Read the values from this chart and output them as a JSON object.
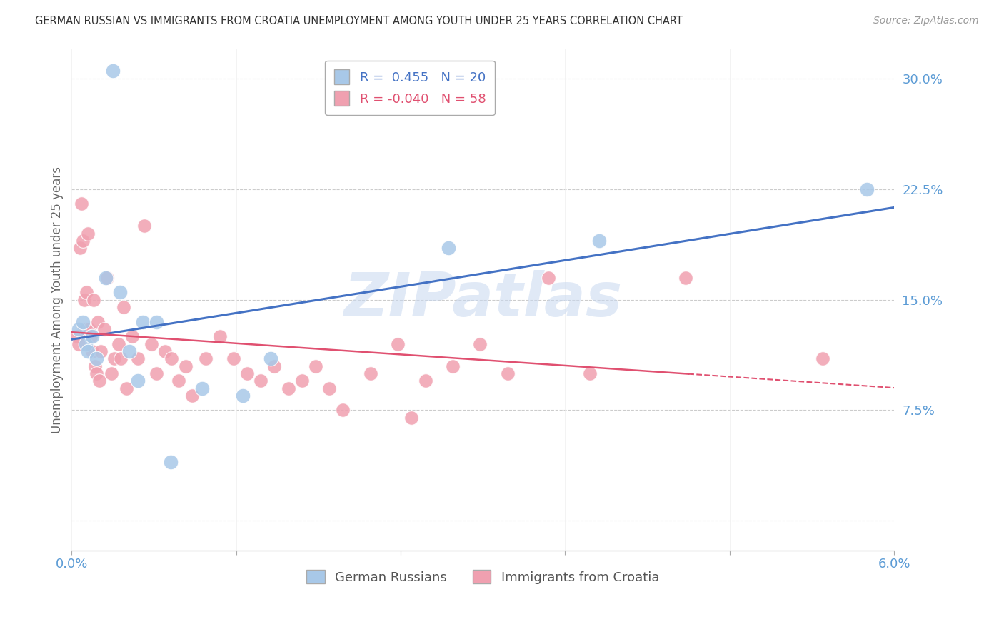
{
  "title": "GERMAN RUSSIAN VS IMMIGRANTS FROM CROATIA UNEMPLOYMENT AMONG YOUTH UNDER 25 YEARS CORRELATION CHART",
  "source": "Source: ZipAtlas.com",
  "ylabel": "Unemployment Among Youth under 25 years",
  "xlim": [
    0.0,
    6.0
  ],
  "ylim": [
    -2.0,
    32.0
  ],
  "yticks": [
    0.0,
    7.5,
    15.0,
    22.5,
    30.0
  ],
  "ytick_labels": [
    "",
    "7.5%",
    "15.0%",
    "22.5%",
    "30.0%"
  ],
  "xtick_positions": [
    0.0,
    1.2,
    2.4,
    3.6,
    4.8,
    6.0
  ],
  "watermark": "ZIPatlas",
  "blue_label": "German Russians",
  "pink_label": "Immigrants from Croatia",
  "blue_R": 0.455,
  "blue_N": 20,
  "pink_R": -0.04,
  "pink_N": 58,
  "blue_color": "#a8c8e8",
  "pink_color": "#f0a0b0",
  "blue_line_color": "#4472c4",
  "pink_line_color": "#e05070",
  "blue_dots": [
    [
      0.3,
      30.5
    ],
    [
      0.05,
      13.0
    ],
    [
      0.08,
      13.5
    ],
    [
      0.1,
      12.0
    ],
    [
      0.12,
      11.5
    ],
    [
      0.15,
      12.5
    ],
    [
      0.18,
      11.0
    ],
    [
      0.25,
      16.5
    ],
    [
      0.35,
      15.5
    ],
    [
      0.42,
      11.5
    ],
    [
      0.48,
      9.5
    ],
    [
      0.52,
      13.5
    ],
    [
      0.62,
      13.5
    ],
    [
      0.72,
      4.0
    ],
    [
      0.95,
      9.0
    ],
    [
      1.25,
      8.5
    ],
    [
      1.45,
      11.0
    ],
    [
      2.75,
      18.5
    ],
    [
      3.85,
      19.0
    ],
    [
      5.8,
      22.5
    ]
  ],
  "pink_dots": [
    [
      0.04,
      12.5
    ],
    [
      0.05,
      12.0
    ],
    [
      0.06,
      18.5
    ],
    [
      0.07,
      21.5
    ],
    [
      0.08,
      19.0
    ],
    [
      0.09,
      15.0
    ],
    [
      0.1,
      13.0
    ],
    [
      0.11,
      15.5
    ],
    [
      0.12,
      19.5
    ],
    [
      0.13,
      13.0
    ],
    [
      0.14,
      12.5
    ],
    [
      0.15,
      11.5
    ],
    [
      0.16,
      15.0
    ],
    [
      0.17,
      10.5
    ],
    [
      0.18,
      10.0
    ],
    [
      0.19,
      13.5
    ],
    [
      0.2,
      9.5
    ],
    [
      0.21,
      11.5
    ],
    [
      0.24,
      13.0
    ],
    [
      0.26,
      16.5
    ],
    [
      0.29,
      10.0
    ],
    [
      0.31,
      11.0
    ],
    [
      0.34,
      12.0
    ],
    [
      0.36,
      11.0
    ],
    [
      0.38,
      14.5
    ],
    [
      0.4,
      9.0
    ],
    [
      0.44,
      12.5
    ],
    [
      0.48,
      11.0
    ],
    [
      0.53,
      20.0
    ],
    [
      0.58,
      12.0
    ],
    [
      0.62,
      10.0
    ],
    [
      0.68,
      11.5
    ],
    [
      0.73,
      11.0
    ],
    [
      0.78,
      9.5
    ],
    [
      0.83,
      10.5
    ],
    [
      0.88,
      8.5
    ],
    [
      0.98,
      11.0
    ],
    [
      1.08,
      12.5
    ],
    [
      1.18,
      11.0
    ],
    [
      1.28,
      10.0
    ],
    [
      1.38,
      9.5
    ],
    [
      1.48,
      10.5
    ],
    [
      1.58,
      9.0
    ],
    [
      1.68,
      9.5
    ],
    [
      1.78,
      10.5
    ],
    [
      1.88,
      9.0
    ],
    [
      1.98,
      7.5
    ],
    [
      2.18,
      10.0
    ],
    [
      2.38,
      12.0
    ],
    [
      2.48,
      7.0
    ],
    [
      2.58,
      9.5
    ],
    [
      2.78,
      10.5
    ],
    [
      2.98,
      12.0
    ],
    [
      3.18,
      10.0
    ],
    [
      3.48,
      16.5
    ],
    [
      3.78,
      10.0
    ],
    [
      4.48,
      16.5
    ],
    [
      5.48,
      11.0
    ]
  ]
}
